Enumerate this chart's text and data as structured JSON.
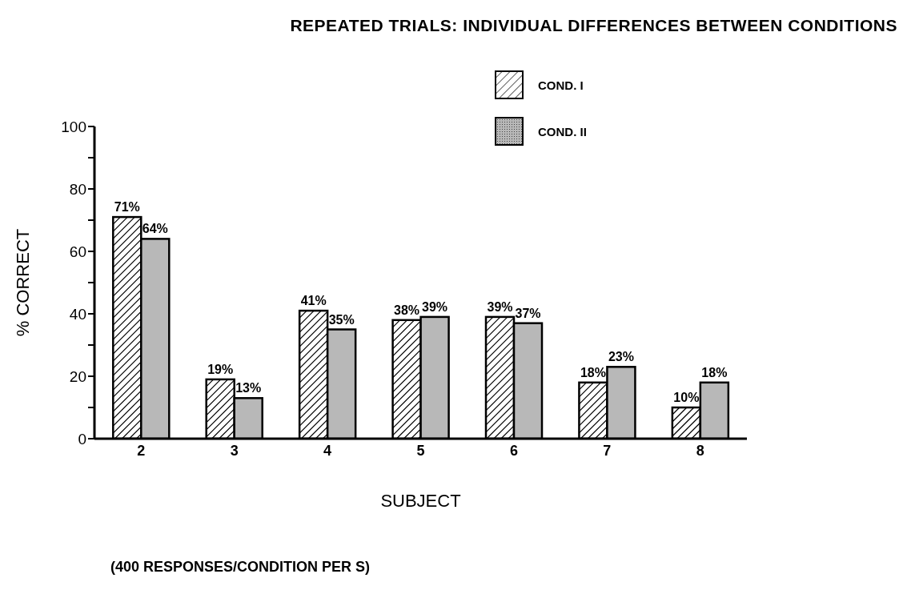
{
  "chart_data": {
    "type": "bar",
    "title": "REPEATED TRIALS: INDIVIDUAL DIFFERENCES BETWEEN CONDITIONS",
    "xlabel": "SUBJECT",
    "ylabel": "% CORRECT",
    "categories": [
      "2",
      "3",
      "4",
      "5",
      "6",
      "7",
      "8"
    ],
    "series": [
      {
        "name": "COND. I",
        "color": "#ffffff",
        "values": [
          71,
          19,
          41,
          38,
          39,
          18,
          10
        ],
        "value_labels": [
          "71%",
          "19%",
          "41%",
          "38%",
          "39%",
          "18%",
          "10%"
        ]
      },
      {
        "name": "COND. II",
        "color": "#b8b8b8",
        "values": [
          64,
          13,
          35,
          39,
          37,
          23,
          18
        ],
        "value_labels": [
          "64%",
          "13%",
          "35%",
          "39%",
          "37%",
          "23%",
          "18%"
        ]
      }
    ],
    "ylim": [
      0,
      100
    ],
    "yticks": [
      0,
      {
        "value": 10,
        "label": null
      },
      20,
      {
        "value": 30,
        "label": null
      },
      40,
      {
        "value": 50,
        "label": null
      },
      60,
      {
        "value": 70,
        "label": null
      },
      80,
      {
        "value": 90,
        "label": null
      },
      100
    ],
    "legend": "top right",
    "annotations": [
      "(400 RESPONSES/CONDITION PER S)"
    ]
  }
}
